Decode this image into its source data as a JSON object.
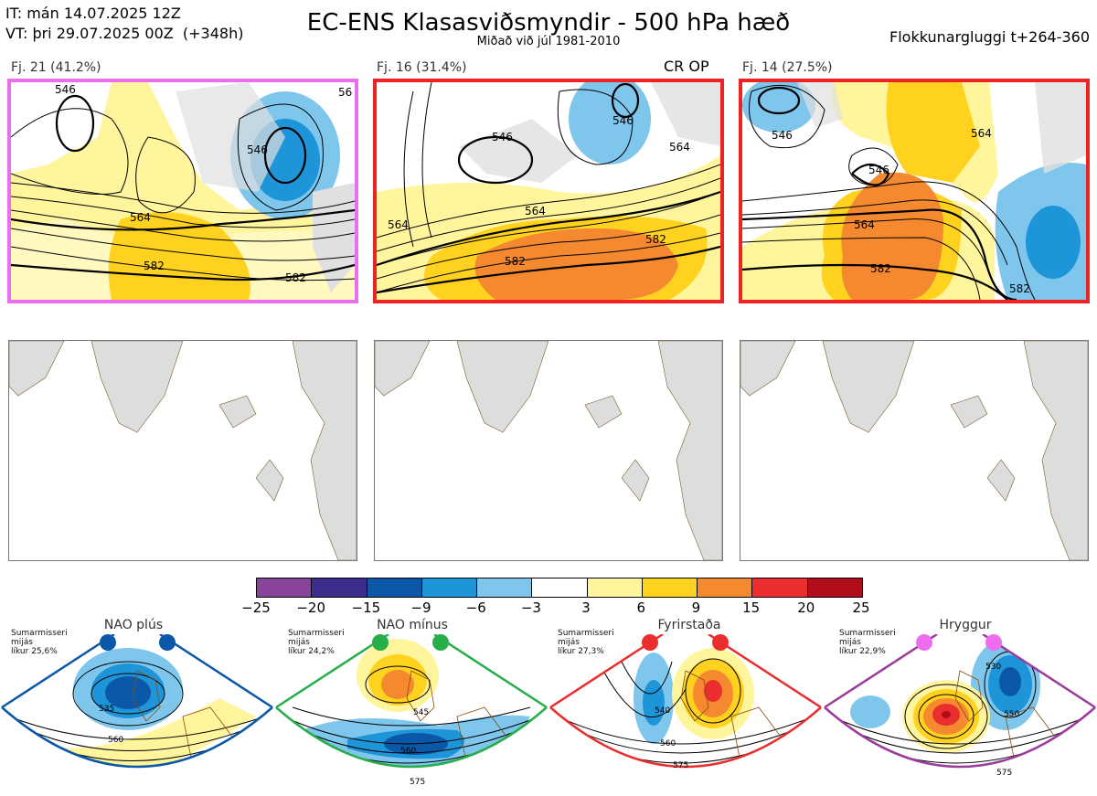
{
  "header": {
    "it_line": "IT: mán 14.07.2025 12Z",
    "vt_line": "VT: þri 29.07.2025 00Z  (+348h)",
    "title": "EC-ENS Klasasviðsmyndir - 500 hPa hæð",
    "subtitle": "Miðað við júl 1981-2010",
    "window": "Flokkunargluggi t+264-360"
  },
  "clusters": [
    {
      "label": "Fj. 21 (41.2%)",
      "frame_color": "#ee6cee",
      "contour_labels": [
        "546",
        "546",
        "564",
        "582",
        "582",
        "56"
      ]
    },
    {
      "label": "Fj. 16 (31.4%)",
      "frame_color": "#ee2222",
      "tag": "CR OP",
      "contour_labels": [
        "546",
        "546",
        "564",
        "564",
        "582",
        "582",
        "564"
      ]
    },
    {
      "label": "Fj. 14 (27.5%)",
      "frame_color": "#ee2222",
      "contour_labels": [
        "546",
        "546",
        "564",
        "564",
        "582",
        "582"
      ]
    }
  ],
  "colorbar": {
    "ticks": [
      "−25",
      "−20",
      "−15",
      "−9",
      "−6",
      "−3",
      "3",
      "6",
      "9",
      "15",
      "20",
      "25"
    ],
    "colors": [
      "#884499",
      "#3d2c8c",
      "#0b58a8",
      "#1e95d8",
      "#7fc6ec",
      "#ffffff",
      "#fff59d",
      "#ffd21f",
      "#f5892f",
      "#ea2e2e",
      "#b10d1b"
    ]
  },
  "regimes": [
    {
      "name": "NAO plús",
      "season": "Sumarmisseri",
      "mean": "mijás",
      "prob": "líkur 25,6%",
      "color": "#0b58a8",
      "contour_labels": [
        "535",
        "560"
      ]
    },
    {
      "name": "NAO mínus",
      "season": "Sumarmisseri",
      "mean": "mijás",
      "prob": "líkur 24,2%",
      "color": "#27ae4a",
      "contour_labels": [
        "545",
        "560",
        "575"
      ]
    },
    {
      "name": "Fyrirstaða",
      "season": "Sumarmisseri",
      "mean": "mijás",
      "prob": "líkur 27,3%",
      "color": "#ea2e2e",
      "contour_labels": [
        "540",
        "560",
        "575"
      ]
    },
    {
      "name": "Hryggur",
      "season": "Sumarmisseri",
      "mean": "mijás",
      "prob": "líkur 22,9%",
      "color": "#9b3b9b",
      "contour_labels": [
        "530",
        "550",
        "575"
      ]
    }
  ]
}
